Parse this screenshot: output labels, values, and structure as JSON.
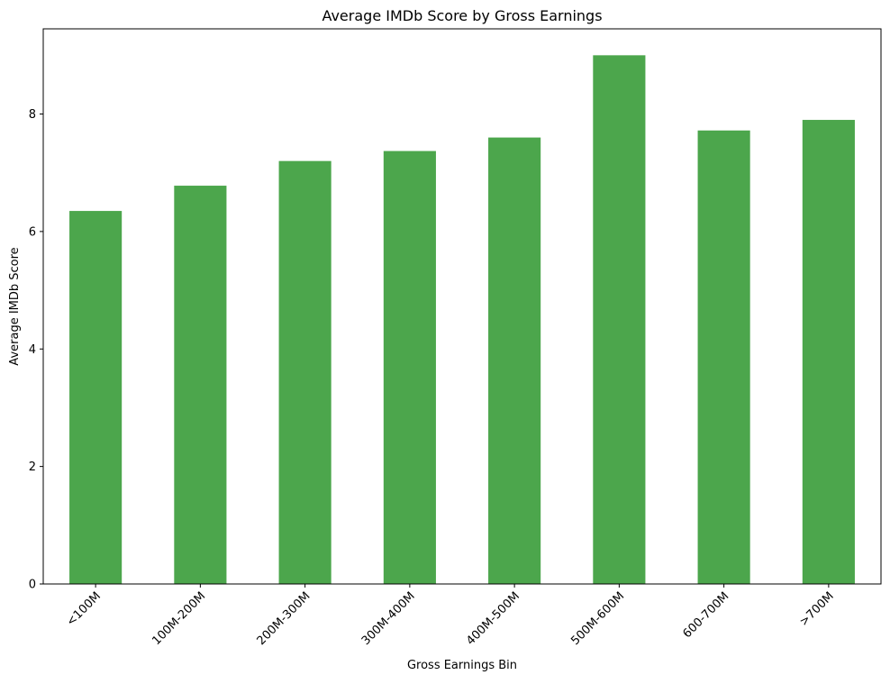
{
  "chart_data": {
    "type": "bar",
    "title": "Average IMDb Score by Gross Earnings",
    "xlabel": "Gross Earnings Bin",
    "ylabel": "Average IMDb Score",
    "categories": [
      "<100M",
      "100M-200M",
      "200M-300M",
      "300M-400M",
      "400M-500M",
      "500M-600M",
      "600-700M",
      ">700M"
    ],
    "values": [
      6.35,
      6.78,
      7.2,
      7.37,
      7.6,
      9.0,
      7.72,
      7.9
    ],
    "ylim": [
      0,
      9.45
    ],
    "yticks": [
      0,
      2,
      4,
      6,
      8
    ],
    "grid": false,
    "bar_color": "#4ca64c"
  }
}
